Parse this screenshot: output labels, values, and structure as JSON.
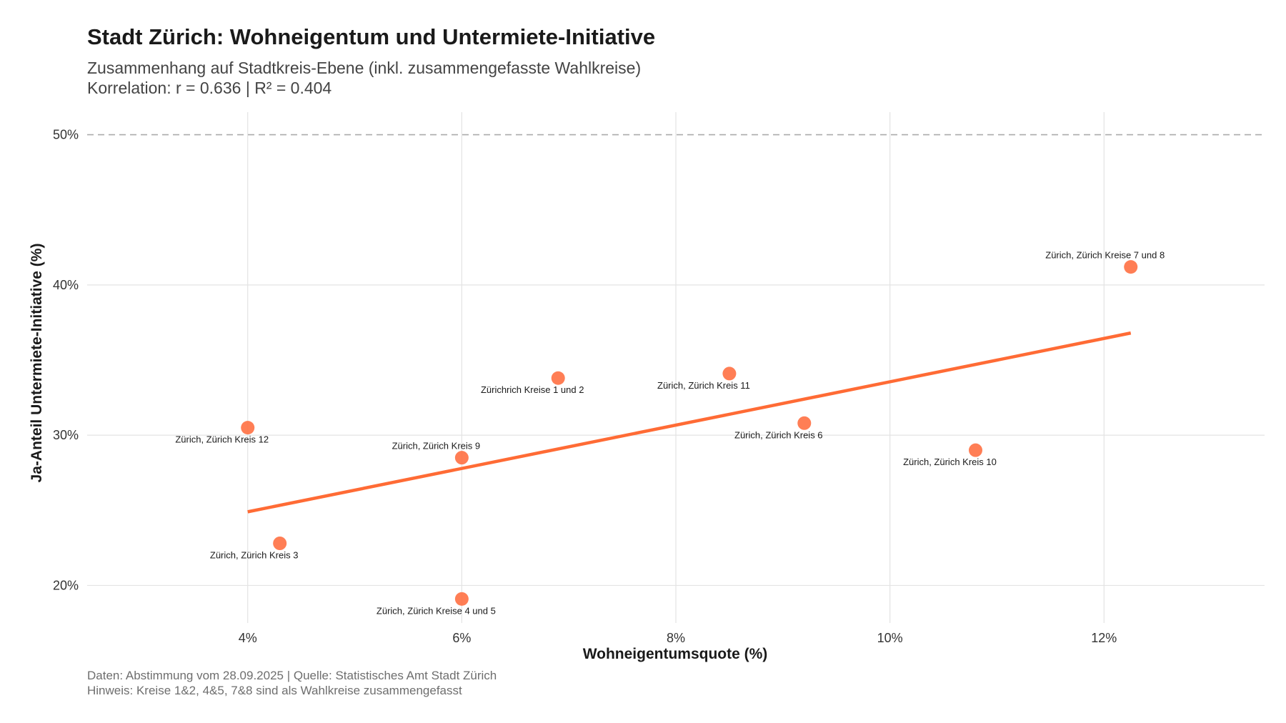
{
  "chart_data": {
    "type": "scatter",
    "title": "Stadt Zürich: Wohneigentum und Untermiete-Initiative",
    "subtitle": [
      "Zusammenhang auf Stadtkreis-Ebene (inkl. zusammengefasste Wahlkreise)",
      "Korrelation: r = 0.636 | R² = 0.404"
    ],
    "xlabel": "Wohneigentumsquote (%)",
    "ylabel": "Ja-Anteil Untermiete-Initiative (%)",
    "xlim": [
      2.5,
      13.5
    ],
    "ylim": [
      17.5,
      51.5
    ],
    "x_ticks": [
      4,
      6,
      8,
      10,
      12
    ],
    "x_tick_labels": [
      "4%",
      "6%",
      "8%",
      "10%",
      "12%"
    ],
    "y_ticks": [
      20,
      30,
      40,
      50
    ],
    "y_tick_labels": [
      "20%",
      "30%",
      "40%",
      "50%"
    ],
    "grid": true,
    "reference_line": {
      "y": 50,
      "style": "dashed",
      "color": "#aaaaaa"
    },
    "point_color": "#ff7043",
    "trend_color": "#ff6b35",
    "points": [
      {
        "label": "Zürichrich Kreise 1 und 2",
        "x": 6.9,
        "y": 33.8,
        "label_pos": "below"
      },
      {
        "label": "Zürich, Zürich Kreis 3",
        "x": 4.3,
        "y": 22.8,
        "label_pos": "below"
      },
      {
        "label": "Zürich, Zürich Kreise 4 und 5",
        "x": 6.0,
        "y": 19.1,
        "label_pos": "below"
      },
      {
        "label": "Zürich, Zürich Kreis 6",
        "x": 9.2,
        "y": 30.8,
        "label_pos": "below"
      },
      {
        "label": "Zürich, Zürich Kreise 7 und 8",
        "x": 12.25,
        "y": 41.2,
        "label_pos": "above"
      },
      {
        "label": "Zürich, Zürich Kreis 9",
        "x": 6.0,
        "y": 28.5,
        "label_pos": "above"
      },
      {
        "label": "Zürich, Zürich Kreis 10",
        "x": 10.8,
        "y": 29.0,
        "label_pos": "below"
      },
      {
        "label": "Zürich, Zürich Kreis 11",
        "x": 8.5,
        "y": 34.1,
        "label_pos": "below"
      },
      {
        "label": "Zürich, Zürich Kreis 12",
        "x": 4.0,
        "y": 30.5,
        "label_pos": "below"
      }
    ],
    "trend_line": {
      "x": [
        4.0,
        12.25
      ],
      "y": [
        24.9,
        36.8
      ]
    }
  },
  "caption": [
    "Daten: Abstimmung vom 28.09.2025 | Quelle: Statistisches Amt Stadt Zürich",
    "Hinweis: Kreise 1&2, 4&5, 7&8 sind als Wahlkreise zusammengefasst"
  ]
}
